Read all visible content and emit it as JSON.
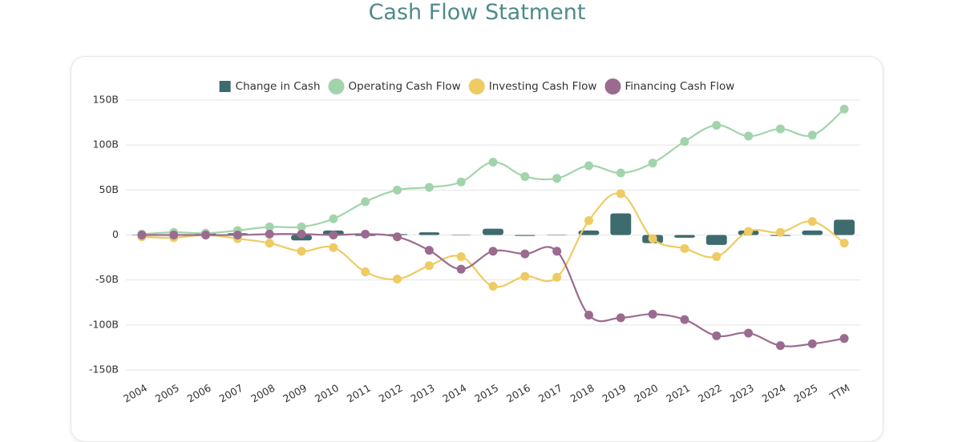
{
  "chart_data": {
    "type": "combo",
    "title": "Cash Flow Statment",
    "categories": [
      "2004",
      "2005",
      "2006",
      "2007",
      "2008",
      "2009",
      "2010",
      "2011",
      "2012",
      "2013",
      "2014",
      "2015",
      "2016",
      "2017",
      "2018",
      "2019",
      "2020",
      "2021",
      "2022",
      "2023",
      "2024",
      "2025",
      "TTM"
    ],
    "series": [
      {
        "name": "Change in Cash",
        "type": "bar",
        "color": "#3d6b6e",
        "values": [
          0.5,
          0.5,
          2,
          2,
          1,
          -6,
          5,
          -1,
          1,
          3,
          0,
          7,
          -1,
          0,
          5,
          24,
          -9,
          -3,
          -11,
          5,
          -1,
          5,
          17
        ]
      },
      {
        "name": "Operating Cash Flow",
        "type": "line",
        "color": "#a2d4ab",
        "values": [
          1,
          3,
          2,
          5,
          9,
          9,
          18,
          37,
          50,
          53,
          59,
          81,
          65,
          63,
          77,
          69,
          80,
          104,
          122,
          110,
          118,
          111,
          140
        ]
      },
      {
        "name": "Investing Cash Flow",
        "type": "line",
        "color": "#eecb63",
        "values": [
          -2,
          -3,
          0,
          -4,
          -9,
          -18,
          -14,
          -41,
          -49,
          -34,
          -24,
          -57,
          -46,
          -47,
          16,
          46,
          -4,
          -15,
          -24,
          4,
          3,
          15,
          -9
        ]
      },
      {
        "name": "Financing Cash Flow",
        "type": "line",
        "color": "#9b6b8f",
        "values": [
          0,
          0,
          0,
          0,
          1,
          1,
          0,
          1,
          -2,
          -17,
          -38,
          -18,
          -21,
          -18,
          -89,
          -92,
          -88,
          -94,
          -112,
          -109,
          -123,
          -121,
          -115
        ]
      }
    ],
    "ylim": [
      -150,
      150
    ],
    "yticks": [
      {
        "value": -150,
        "label": "-150B"
      },
      {
        "value": -100,
        "label": "-100B"
      },
      {
        "value": -50,
        "label": "-50B"
      },
      {
        "value": 0,
        "label": "0"
      },
      {
        "value": 50,
        "label": "50B"
      },
      {
        "value": 100,
        "label": "100B"
      },
      {
        "value": 150,
        "label": "150B"
      }
    ],
    "grid": true
  }
}
